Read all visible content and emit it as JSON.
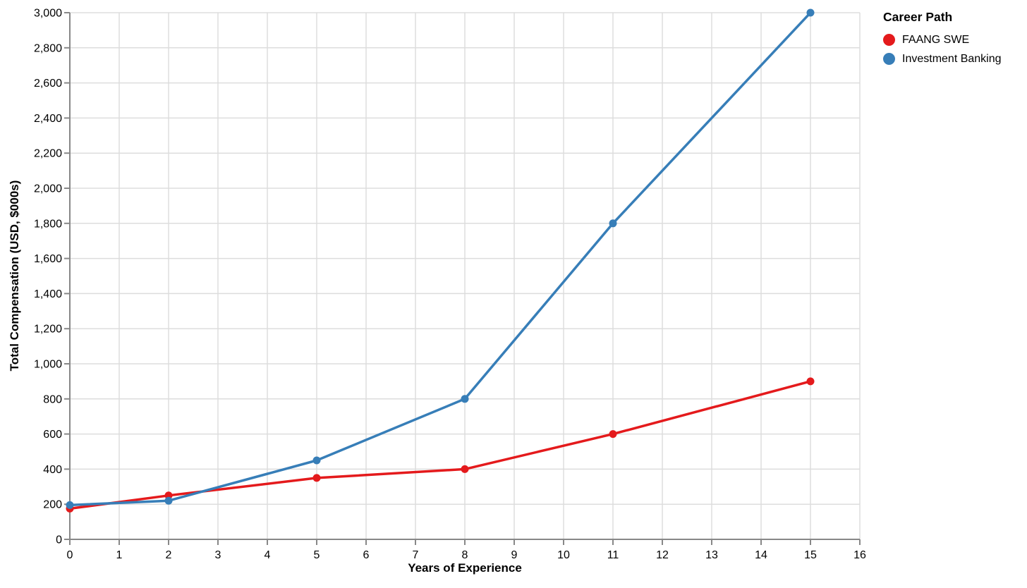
{
  "page": {
    "background": "#ffffff"
  },
  "chart_data": {
    "type": "line",
    "title": "",
    "xlabel": "Years of Experience",
    "ylabel": "Total Compensation (USD, $000s)",
    "xlim": [
      0,
      16
    ],
    "ylim": [
      0,
      3000
    ],
    "grid": true,
    "x_ticks": [
      0,
      1,
      2,
      3,
      4,
      5,
      6,
      7,
      8,
      9,
      10,
      11,
      12,
      13,
      14,
      15,
      16
    ],
    "x_tick_labels": [
      "0",
      "1",
      "2",
      "3",
      "4",
      "5",
      "6",
      "7",
      "8",
      "9",
      "10",
      "11",
      "12",
      "13",
      "14",
      "15",
      "16"
    ],
    "y_ticks": [
      0,
      200,
      400,
      600,
      800,
      1000,
      1200,
      1400,
      1600,
      1800,
      2000,
      2200,
      2400,
      2600,
      2800,
      3000
    ],
    "y_tick_labels": [
      "0",
      "200",
      "400",
      "600",
      "800",
      "1,000",
      "1,200",
      "1,400",
      "1,600",
      "1,800",
      "2,000",
      "2,200",
      "2,400",
      "2,600",
      "2,800",
      "3,000"
    ],
    "legend": {
      "title": "Career Path",
      "position": "top-right-outside"
    },
    "series": [
      {
        "name": "FAANG SWE",
        "color": "#e41a1c",
        "points": [
          [
            0,
            175
          ],
          [
            2,
            250
          ],
          [
            5,
            350
          ],
          [
            8,
            400
          ],
          [
            11,
            600
          ],
          [
            15,
            900
          ]
        ]
      },
      {
        "name": "Investment Banking",
        "color": "#377eb8",
        "points": [
          [
            0,
            195
          ],
          [
            2,
            220
          ],
          [
            5,
            450
          ],
          [
            8,
            800
          ],
          [
            11,
            1800
          ],
          [
            15,
            3000
          ]
        ]
      }
    ],
    "style_colors": {
      "grid": "#dddddd",
      "axis": "#888888",
      "tick_label": "#000000"
    }
  }
}
